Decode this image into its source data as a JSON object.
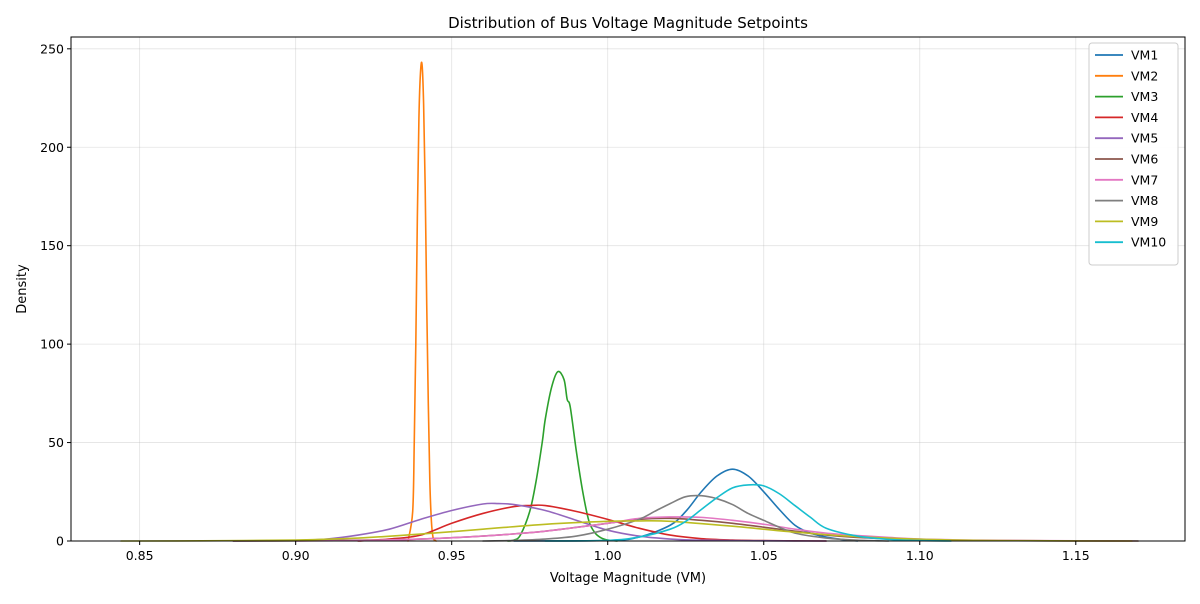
{
  "chart_data": {
    "type": "line",
    "title": "Distribution of Bus Voltage Magnitude Setpoints",
    "xlabel": "Voltage Magnitude (VM)",
    "ylabel": "Density",
    "xlim": [
      0.828,
      1.185
    ],
    "ylim": [
      0,
      256
    ],
    "xticks": [
      0.85,
      0.9,
      0.95,
      1.0,
      1.05,
      1.1,
      1.15
    ],
    "xtick_labels": [
      "0.85",
      "0.90",
      "0.95",
      "1.00",
      "1.05",
      "1.10",
      "1.15"
    ],
    "yticks": [
      0,
      50,
      100,
      150,
      200,
      250
    ],
    "ytick_labels": [
      "0",
      "50",
      "100",
      "150",
      "200",
      "250"
    ],
    "grid": true,
    "legend_position": "top-right",
    "series": [
      {
        "name": "VM1",
        "color": "#1f77b4",
        "x": [
          0.97,
          1.0,
          1.01,
          1.02,
          1.025,
          1.03,
          1.035,
          1.04,
          1.045,
          1.05,
          1.055,
          1.06,
          1.065,
          1.07,
          1.075,
          1.08
        ],
        "y": [
          0,
          0.3,
          2,
          8,
          15,
          25,
          33,
          36.5,
          33,
          25,
          16,
          8,
          4,
          2,
          0.8,
          0
        ]
      },
      {
        "name": "VM2",
        "color": "#ff7f0e",
        "x": [
          0.936,
          0.9375,
          0.938,
          0.9385,
          0.939,
          0.9395,
          0.94,
          0.9405,
          0.941,
          0.9415,
          0.942,
          0.9425,
          0.943,
          0.9435,
          0.944,
          0.9445,
          0.945
        ],
        "y": [
          0,
          15,
          50,
          100,
          165,
          215,
          238,
          242,
          222,
          180,
          120,
          70,
          30,
          10,
          2,
          0.5,
          0
        ]
      },
      {
        "name": "VM3",
        "color": "#2ca02c",
        "x": [
          0.968,
          0.97,
          0.972,
          0.975,
          0.977,
          0.979,
          0.98,
          0.982,
          0.984,
          0.986,
          0.987,
          0.988,
          0.99,
          0.992,
          0.994,
          0.996,
          0.998,
          1.0,
          1.003
        ],
        "y": [
          0,
          0.5,
          3,
          15,
          30,
          50,
          62,
          78,
          86,
          82,
          72,
          68,
          45,
          25,
          10,
          4,
          1.5,
          0.5,
          0
        ]
      },
      {
        "name": "VM4",
        "color": "#d62728",
        "x": [
          0.92,
          0.93,
          0.94,
          0.95,
          0.96,
          0.97,
          0.975,
          0.98,
          0.99,
          1.0,
          1.01,
          1.02,
          1.03,
          1.04,
          1.05,
          1.06,
          1.07
        ],
        "y": [
          0,
          1,
          3,
          9,
          14,
          17.5,
          18,
          18,
          15,
          11,
          6.5,
          3,
          1.2,
          0.5,
          0.2,
          0.1,
          0
        ]
      },
      {
        "name": "VM5",
        "color": "#9467bd",
        "x": [
          0.88,
          0.9,
          0.91,
          0.92,
          0.93,
          0.94,
          0.95,
          0.96,
          0.965,
          0.97,
          0.98,
          0.99,
          1.0,
          1.01,
          1.02,
          1.03,
          1.05,
          1.07
        ],
        "y": [
          0,
          0.3,
          1,
          3,
          6,
          11,
          15.5,
          18.8,
          19,
          18.5,
          15.5,
          10.5,
          5.5,
          2.5,
          1,
          0.4,
          0.1,
          0
        ]
      },
      {
        "name": "VM6",
        "color": "#8c564b",
        "x": [
          0.88,
          0.9,
          0.92,
          0.94,
          0.96,
          0.98,
          1.0,
          1.01,
          1.02,
          1.03,
          1.04,
          1.05,
          1.06,
          1.07,
          1.08,
          1.1,
          1.13,
          1.16,
          1.17
        ],
        "y": [
          0,
          0.1,
          0.4,
          1,
          2.5,
          5,
          9,
          11,
          11.5,
          10.5,
          9,
          7,
          5,
          3,
          1.8,
          0.6,
          0.15,
          0.05,
          0
        ]
      },
      {
        "name": "VM7",
        "color": "#e377c2",
        "x": [
          0.9,
          0.92,
          0.94,
          0.96,
          0.98,
          1.0,
          1.01,
          1.02,
          1.03,
          1.04,
          1.05,
          1.06,
          1.07,
          1.08,
          1.09,
          1.1,
          1.12,
          1.15,
          1.168
        ],
        "y": [
          0,
          0.3,
          1,
          2.5,
          5,
          9,
          11.5,
          12.2,
          12,
          10.5,
          8.5,
          6,
          4,
          2.8,
          1.8,
          1,
          0.4,
          0.1,
          0
        ]
      },
      {
        "name": "VM8",
        "color": "#7f7f7f",
        "x": [
          0.96,
          0.97,
          0.98,
          0.99,
          1.0,
          1.01,
          1.015,
          1.02,
          1.025,
          1.03,
          1.035,
          1.04,
          1.045,
          1.05,
          1.055,
          1.06,
          1.07,
          1.08,
          1.09
        ],
        "y": [
          0,
          0.3,
          1,
          2.5,
          6,
          11,
          15,
          19,
          22.5,
          23,
          21.5,
          18.5,
          14,
          10.5,
          7,
          4,
          1.5,
          0.4,
          0
        ]
      },
      {
        "name": "VM9",
        "color": "#bcbd22",
        "x": [
          0.844,
          0.87,
          0.9,
          0.92,
          0.94,
          0.96,
          0.98,
          1.0,
          1.01,
          1.02,
          1.04,
          1.06,
          1.08,
          1.1,
          1.12,
          1.15,
          1.168
        ],
        "y": [
          0,
          0.1,
          0.5,
          1.5,
          3.5,
          6,
          8.5,
          10,
          10.2,
          10,
          7.5,
          4.5,
          2.2,
          0.9,
          0.3,
          0.05,
          0
        ]
      },
      {
        "name": "VM10",
        "color": "#17becf",
        "x": [
          0.98,
          1.0,
          1.01,
          1.02,
          1.025,
          1.03,
          1.035,
          1.04,
          1.045,
          1.05,
          1.055,
          1.06,
          1.065,
          1.07,
          1.08,
          1.09,
          1.1,
          1.11
        ],
        "y": [
          0,
          0.3,
          2,
          6,
          10,
          16,
          22,
          27,
          28.5,
          28,
          24,
          18,
          12,
          6.5,
          2.5,
          0.8,
          0.2,
          0
        ]
      }
    ]
  }
}
